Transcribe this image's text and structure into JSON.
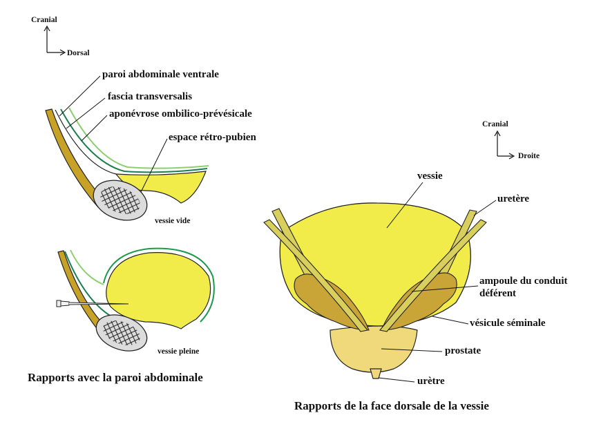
{
  "left_panel": {
    "axes": {
      "up": "Cranial",
      "right": "Dorsal"
    },
    "labels": {
      "paroi": "paroi abdominale ventrale",
      "fascia": "fascia transversalis",
      "aponevrose": "aponévrose ombilico-prévésicale",
      "espace": "espace rétro-pubien"
    },
    "vessie_vide": "vessie vide",
    "vessie_pleine": "vessie pleine",
    "caption": "Rapports avec la paroi abdominale"
  },
  "right_panel": {
    "axes": {
      "up": "Cranial",
      "right": "Droite"
    },
    "labels": {
      "vessie": "vessie",
      "uretere": "uretère",
      "ampoule_1": "ampoule du conduit",
      "ampoule_2": "déférent",
      "vesicule": "vésicule séminale",
      "prostate": "prostate",
      "uretre": "urètre"
    },
    "caption": "Rapports de la face dorsale de la vessie"
  },
  "colors": {
    "bladder": "#f2ec4a",
    "prostate": "#f0d97a",
    "seminal": "#c9a437",
    "wall": "#c8a227",
    "fascia_green": "#1a7f4e",
    "aponeurosis_green": "#8ccf6f",
    "pubis": "#dcdcdc"
  }
}
